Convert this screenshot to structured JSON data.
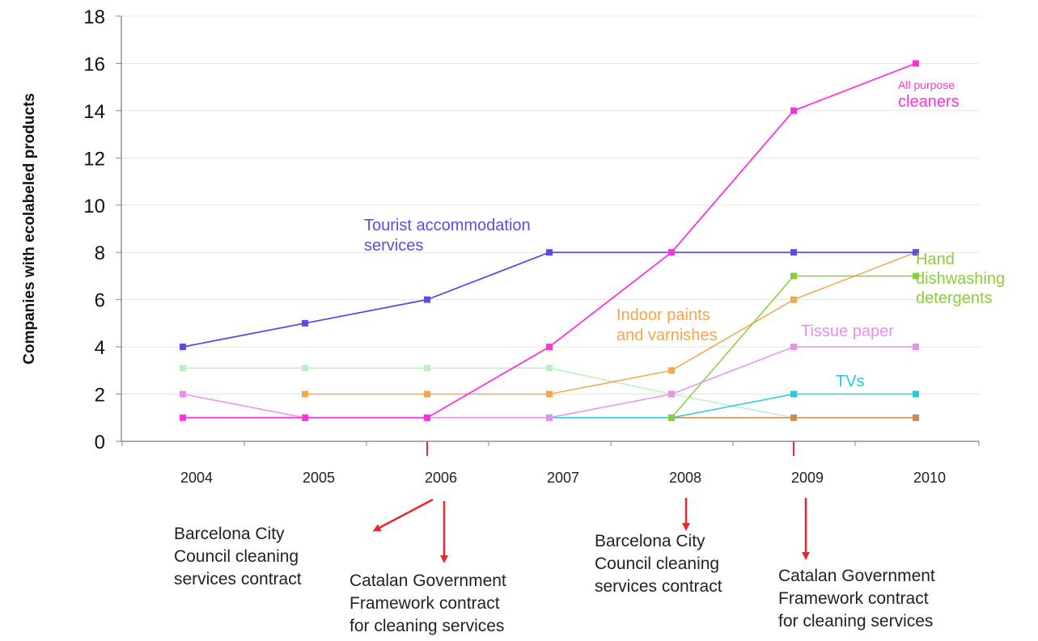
{
  "chart_data": {
    "type": "line",
    "title": "",
    "xlabel": "",
    "ylabel": "Companies with ecolabeled products",
    "x": [
      "2004",
      "2005",
      "2006",
      "2007",
      "2008",
      "2009",
      "2010"
    ],
    "ylim": [
      0,
      18
    ],
    "yticks": [
      "0",
      "2",
      "4",
      "6",
      "8",
      "10",
      "12",
      "14",
      "16",
      "18"
    ],
    "grid": true,
    "series": [
      {
        "name": "Tourist accommodation services",
        "color": "#5b4ce6",
        "values": [
          4,
          5,
          6,
          8,
          8,
          8,
          8
        ]
      },
      {
        "name": "All purpose cleaners",
        "color": "#ff33dd",
        "values": [
          1,
          1,
          1,
          4,
          8,
          14,
          16
        ]
      },
      {
        "name": "Hand dishwashing detergents",
        "color": "#8ccc3c",
        "values": [
          null,
          null,
          null,
          null,
          1,
          7,
          7
        ]
      },
      {
        "name": "Indoor paints and varnishes",
        "color": "#f5a54a",
        "values": [
          null,
          2,
          2,
          2,
          3,
          6,
          8
        ]
      },
      {
        "name": "Tissue paper",
        "color": "#e88fea",
        "values": [
          2,
          1,
          1,
          1,
          2,
          4,
          4
        ]
      },
      {
        "name": "TVs",
        "color": "#22ccdd",
        "values": [
          null,
          1,
          1,
          1,
          1,
          2,
          2
        ]
      },
      {
        "name": "",
        "color": "#b9f0c4",
        "values": [
          3.1,
          3.1,
          3.1,
          3.1,
          2,
          1,
          1
        ]
      },
      {
        "name": "",
        "color": "#c98a55",
        "values": [
          null,
          null,
          null,
          null,
          1,
          1,
          1
        ]
      }
    ],
    "series_labels": [
      {
        "lines": [
          "Tourist accommodation",
          "services"
        ],
        "color": "#5b4ce6"
      },
      {
        "lines": [
          "All purpose",
          "cleaners"
        ],
        "color": "#ff33dd"
      },
      {
        "lines": [
          "Hand",
          "dishwashing",
          "detergents"
        ],
        "color": "#8ccc3c"
      },
      {
        "lines": [
          "Indoor paints",
          "and varnishes"
        ],
        "color": "#f5a54a"
      },
      {
        "lines": [
          "Tissue paper"
        ],
        "color": "#e88fea"
      },
      {
        "lines": [
          "TVs"
        ],
        "color": "#22ccdd"
      }
    ],
    "event_markers": [
      "2006",
      "2009"
    ],
    "event_marker_color": "#e8282e",
    "annotations": [
      {
        "year": "2006",
        "lines": [
          "Barcelona City",
          "Council cleaning",
          "services contract"
        ]
      },
      {
        "year": "2006",
        "lines": [
          "Catalan Government",
          "Framework contract",
          "for cleaning services"
        ]
      },
      {
        "year": "2008",
        "lines": [
          "Barcelona City",
          "Council cleaning",
          "services contract"
        ]
      },
      {
        "year": "2009",
        "lines": [
          "Catalan Government",
          "Framework contract",
          "for cleaning services"
        ]
      }
    ]
  }
}
